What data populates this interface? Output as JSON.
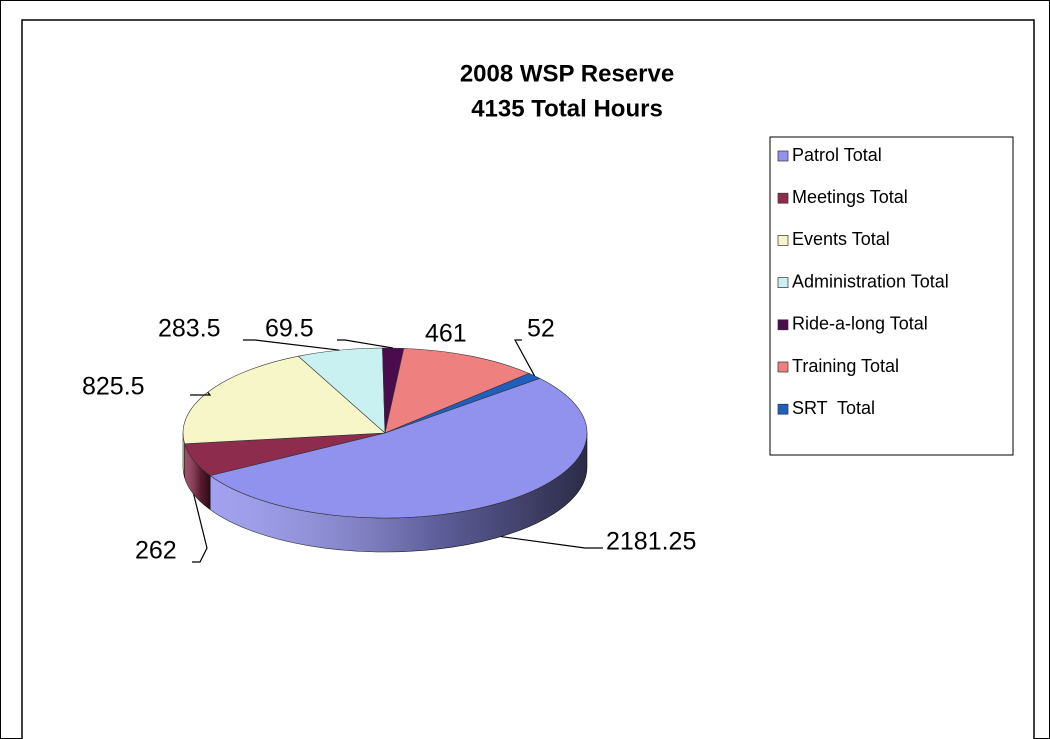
{
  "chart_data": {
    "type": "pie",
    "title": "2008 WSP Reserve",
    "subtitle": "4135 Total Hours",
    "categories": [
      "Patrol Total",
      "Meetings Total",
      "Events Total",
      "Administration Total",
      "Ride-a-long Total",
      "Training Total",
      "SRT  Total"
    ],
    "values": [
      2181.25,
      262,
      825.5,
      283.5,
      69.5,
      461,
      52
    ],
    "colors": [
      "#9191ee",
      "#8e2c4e",
      "#f6f6c9",
      "#c9f1f1",
      "#4b0c4d",
      "#ee8080",
      "#1f5fbd"
    ],
    "legend": "right"
  }
}
